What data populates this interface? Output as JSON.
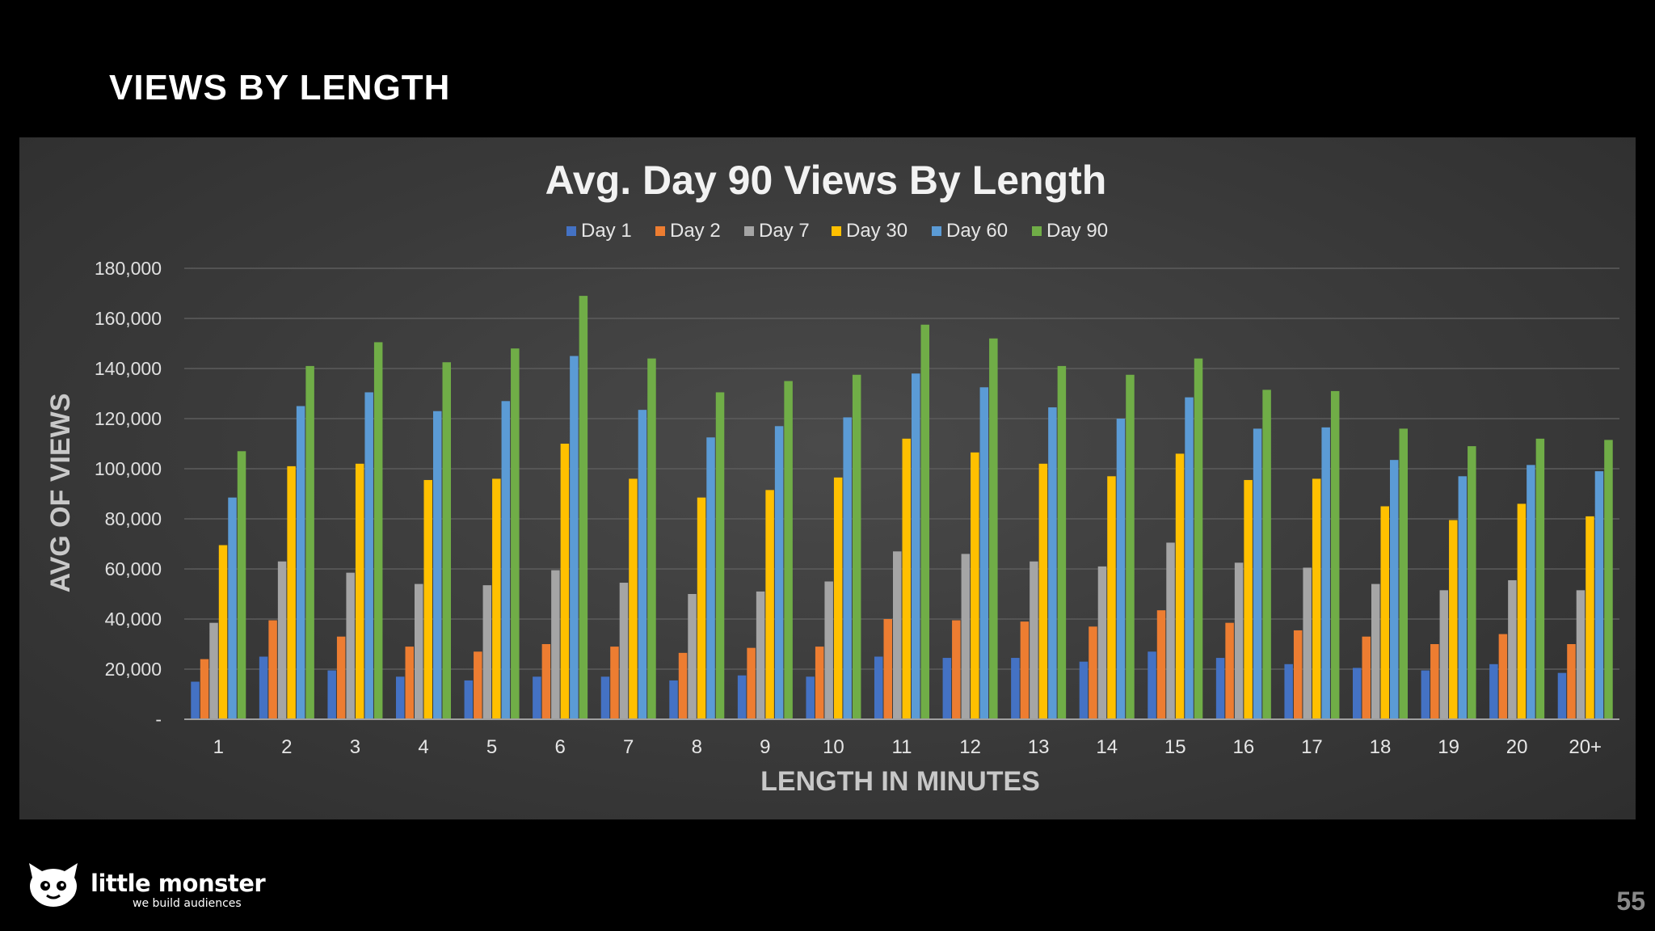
{
  "slide": {
    "title": "VIEWS BY LENGTH",
    "page_number": "55"
  },
  "brand": {
    "name": "little monster",
    "tagline": "we build audiences",
    "logo_icon": "monster-cat-icon"
  },
  "colors": {
    "Day 1": "#4472c4",
    "Day 2": "#ed7d31",
    "Day 7": "#a5a5a5",
    "Day 30": "#ffc000",
    "Day 60": "#5b9bd5",
    "Day 90": "#70ad47"
  },
  "chart_data": {
    "type": "bar",
    "title": "Avg. Day 90 Views By Length",
    "xlabel": "LENGTH IN MINUTES",
    "ylabel": "AVG OF VIEWS",
    "ylim": [
      0,
      180000
    ],
    "yticks": [
      "-",
      "20,000",
      "40,000",
      "60,000",
      "80,000",
      "100,000",
      "120,000",
      "140,000",
      "160,000",
      "180,000"
    ],
    "grid": true,
    "legend_position": "top-center",
    "categories": [
      "1",
      "2",
      "3",
      "4",
      "5",
      "6",
      "7",
      "8",
      "9",
      "10",
      "11",
      "12",
      "13",
      "14",
      "15",
      "16",
      "17",
      "18",
      "19",
      "20",
      "20+"
    ],
    "series": [
      {
        "name": "Day 1",
        "values": [
          15000,
          25000,
          19500,
          17000,
          15500,
          17000,
          17000,
          15500,
          17500,
          17000,
          25000,
          24500,
          24500,
          23000,
          27000,
          24500,
          22000,
          20500,
          19500,
          22000,
          18500
        ]
      },
      {
        "name": "Day 2",
        "values": [
          24000,
          39500,
          33000,
          29000,
          27000,
          30000,
          29000,
          26500,
          28500,
          29000,
          40000,
          39500,
          39000,
          37000,
          43500,
          38500,
          35500,
          33000,
          30000,
          34000,
          30000
        ]
      },
      {
        "name": "Day 7",
        "values": [
          38500,
          63000,
          58500,
          54000,
          53500,
          59500,
          54500,
          50000,
          51000,
          55000,
          67000,
          66000,
          63000,
          61000,
          70500,
          62500,
          60500,
          54000,
          51500,
          55500,
          51500
        ]
      },
      {
        "name": "Day 30",
        "values": [
          69500,
          101000,
          102000,
          95500,
          96000,
          110000,
          96000,
          88500,
          91500,
          96500,
          112000,
          106500,
          102000,
          97000,
          106000,
          95500,
          96000,
          85000,
          79500,
          86000,
          81000
        ]
      },
      {
        "name": "Day 60",
        "values": [
          88500,
          125000,
          130500,
          123000,
          127000,
          145000,
          123500,
          112500,
          117000,
          120500,
          138000,
          132500,
          124500,
          120000,
          128500,
          116000,
          116500,
          103500,
          97000,
          101500,
          99000
        ]
      },
      {
        "name": "Day 90",
        "values": [
          107000,
          141000,
          150500,
          142500,
          148000,
          169000,
          144000,
          130500,
          135000,
          137500,
          157500,
          152000,
          141000,
          137500,
          144000,
          131500,
          131000,
          116000,
          109000,
          112000,
          111500
        ]
      }
    ]
  }
}
